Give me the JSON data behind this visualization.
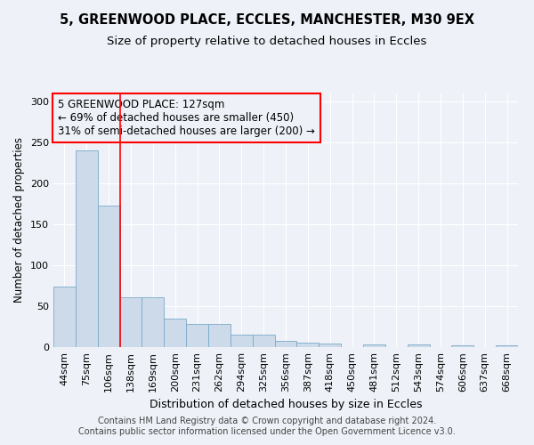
{
  "title1": "5, GREENWOOD PLACE, ECCLES, MANCHESTER, M30 9EX",
  "title2": "Size of property relative to detached houses in Eccles",
  "xlabel": "Distribution of detached houses by size in Eccles",
  "ylabel": "Number of detached properties",
  "categories": [
    "44sqm",
    "75sqm",
    "106sqm",
    "138sqm",
    "169sqm",
    "200sqm",
    "231sqm",
    "262sqm",
    "294sqm",
    "325sqm",
    "356sqm",
    "387sqm",
    "418sqm",
    "450sqm",
    "481sqm",
    "512sqm",
    "543sqm",
    "574sqm",
    "606sqm",
    "637sqm",
    "668sqm"
  ],
  "values": [
    74,
    240,
    173,
    61,
    61,
    35,
    28,
    28,
    15,
    15,
    8,
    5,
    4,
    0,
    3,
    0,
    3,
    0,
    2,
    0,
    2
  ],
  "bar_color": "#cddaea",
  "bar_edge_color": "#7aaac8",
  "annotation_text": "5 GREENWOOD PLACE: 127sqm\n← 69% of detached houses are smaller (450)\n31% of semi-detached houses are larger (200) →",
  "footer": "Contains HM Land Registry data © Crown copyright and database right 2024.\nContains public sector information licensed under the Open Government Licence v3.0.",
  "ylim": [
    0,
    310
  ],
  "yticks": [
    0,
    50,
    100,
    150,
    200,
    250,
    300
  ],
  "red_line_index": 2.5,
  "background_color": "#eef2f8",
  "grid_color": "#ffffff",
  "title1_fontsize": 10.5,
  "title2_fontsize": 9.5,
  "xlabel_fontsize": 9,
  "ylabel_fontsize": 8.5,
  "tick_fontsize": 8,
  "annotation_fontsize": 8.5,
  "footer_fontsize": 7
}
